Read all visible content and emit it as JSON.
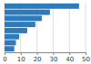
{
  "chart_data": {
    "type": "bar",
    "orientation": "horizontal",
    "categories": [
      null,
      null,
      null,
      null,
      null,
      null,
      null,
      null
    ],
    "values": [
      46000,
      28000,
      23000,
      19000,
      14000,
      9000,
      7000,
      6000
    ],
    "color": "#2d7bbd",
    "xlim": [
      0,
      50000
    ],
    "xticks": [
      0,
      {
        "value": 10000,
        "label": "10"
      },
      {
        "value": 20000,
        "label": "20"
      },
      {
        "value": 30000,
        "label": "30"
      },
      {
        "value": 40000,
        "label": "40"
      },
      {
        "value": 50000,
        "label": "50"
      }
    ],
    "grid": true,
    "tick_labels": "x"
  }
}
